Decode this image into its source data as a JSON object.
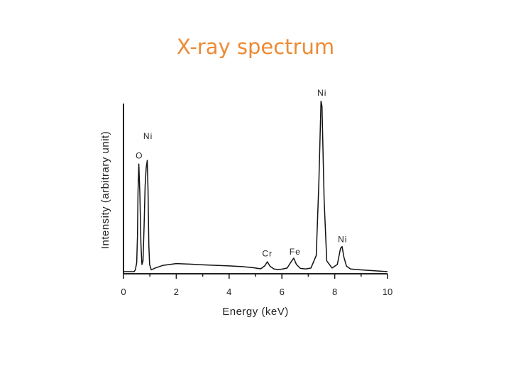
{
  "page": {
    "title": "X-ray spectrum",
    "title_color": "#ee8a34"
  },
  "chart_data": {
    "type": "line",
    "title": "X-ray spectrum",
    "xlabel": "Energy (keV)",
    "ylabel": "Intensity (arbitrary unit)",
    "xlim": [
      0,
      10
    ],
    "ylim": [
      0,
      100
    ],
    "x_ticks": [
      0,
      2,
      4,
      6,
      8,
      10
    ],
    "x_minor_ticks": [
      1,
      3,
      5,
      7,
      9
    ],
    "grid": false,
    "line_color": "#111111",
    "series": [
      {
        "x": [
          0.0,
          0.2,
          0.4,
          0.45,
          0.5,
          0.53,
          0.55,
          0.58,
          0.62,
          0.66,
          0.7,
          0.74,
          0.78,
          0.82,
          0.86,
          0.9,
          0.93,
          0.96,
          0.99,
          1.05,
          1.2,
          1.5,
          2.0,
          2.5,
          3.0,
          3.5,
          4.0,
          4.5,
          4.9,
          5.2,
          5.35,
          5.45,
          5.55,
          5.7,
          5.85,
          6.0,
          6.2,
          6.35,
          6.45,
          6.55,
          6.7,
          6.9,
          7.1,
          7.3,
          7.4,
          7.48,
          7.52,
          7.6,
          7.7,
          7.9,
          8.1,
          8.22,
          8.28,
          8.35,
          8.45,
          8.6,
          9.0,
          9.5,
          10.0
        ],
        "y": [
          0,
          0,
          0,
          1,
          5,
          20,
          45,
          60,
          43,
          15,
          4,
          6,
          25,
          48,
          58,
          62,
          45,
          15,
          4,
          1,
          2,
          3.5,
          4.5,
          4.2,
          3.8,
          3.5,
          3.2,
          2.8,
          2.2,
          1.6,
          3.2,
          5.5,
          3.0,
          1.5,
          1.2,
          1.4,
          2.0,
          5.5,
          7.5,
          4.0,
          1.8,
          1.5,
          2.0,
          9.0,
          50,
          95,
          92,
          40,
          6,
          2,
          4,
          13,
          14,
          8,
          3,
          1.5,
          1.0,
          0.5,
          0
        ]
      }
    ],
    "annotations": [
      {
        "text": "O",
        "x": 0.6,
        "y": 63
      },
      {
        "text": "Ni",
        "x": 0.93,
        "y": 74
      },
      {
        "text": "Cr",
        "x": 5.45,
        "y": 8.5
      },
      {
        "text": "Fe",
        "x": 6.5,
        "y": 9.5
      },
      {
        "text": "Ni",
        "x": 7.52,
        "y": 98
      },
      {
        "text": "Ni",
        "x": 8.3,
        "y": 16.5
      }
    ]
  }
}
